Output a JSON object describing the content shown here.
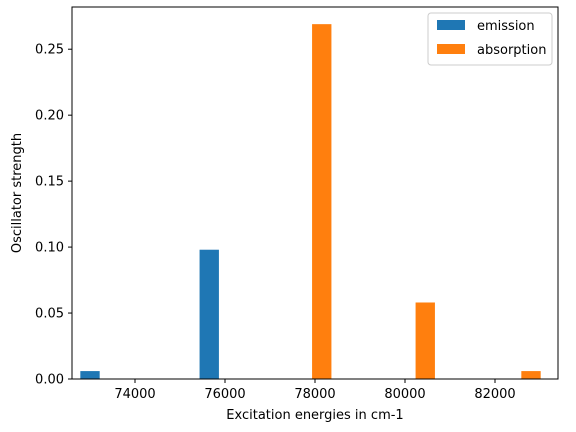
{
  "chart_data": {
    "type": "bar",
    "title": "",
    "xlabel": "Excitation energies in cm-1",
    "ylabel": "Oscillator strength",
    "xlim": [
      72600,
      83400
    ],
    "ylim": [
      0,
      0.282
    ],
    "xticks": [
      74000,
      76000,
      78000,
      80000,
      82000
    ],
    "xtick_labels": [
      "74000",
      "76000",
      "78000",
      "80000",
      "82000"
    ],
    "yticks": [
      0.0,
      0.05,
      0.1,
      0.15,
      0.2,
      0.25
    ],
    "ytick_labels": [
      "0.00",
      "0.05",
      "0.10",
      "0.15",
      "0.20",
      "0.25"
    ],
    "bar_width": 430,
    "grid": false,
    "legend_position": "top-right",
    "series": [
      {
        "name": "emission",
        "color": "#1f77b4",
        "points": [
          {
            "x": 73000,
            "y": 0.006
          },
          {
            "x": 75650,
            "y": 0.098
          }
        ]
      },
      {
        "name": "absorption",
        "color": "#ff7f0e",
        "points": [
          {
            "x": 78150,
            "y": 0.269
          },
          {
            "x": 80450,
            "y": 0.058
          },
          {
            "x": 82800,
            "y": 0.006
          }
        ]
      }
    ]
  }
}
